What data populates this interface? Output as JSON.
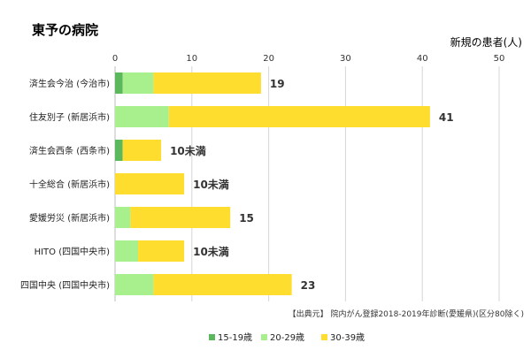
{
  "chart_data": {
    "type": "bar",
    "stacked": true,
    "orientation": "horizontal",
    "title": "東予の病院",
    "unit_label": "新規の患者(人)",
    "xlim": [
      0,
      50
    ],
    "x_ticks": [
      0,
      10,
      20,
      30,
      40,
      50
    ],
    "grid": true,
    "legend_position": "bottom",
    "categories": [
      "済生会今治 (今治市)",
      "住友別子 (新居浜市)",
      "済生会西条 (西条市)",
      "十全総合 (新居浜市)",
      "愛媛労災 (新居浜市)",
      "HITO (四国中央市)",
      "四国中央 (四国中央市)"
    ],
    "series": [
      {
        "name": "15-19歳",
        "color": "#5cb85c",
        "values": [
          1,
          0,
          1,
          0,
          0,
          0,
          0
        ]
      },
      {
        "name": "20-29歳",
        "color": "#a8ef8e",
        "values": [
          4,
          7,
          0,
          0,
          2,
          3,
          5
        ]
      },
      {
        "name": "30-39歳",
        "color": "#ffdd2e",
        "values": [
          14,
          34,
          5,
          9,
          13,
          6,
          18
        ]
      }
    ],
    "data_labels": [
      "19",
      "41",
      "10未満",
      "10未満",
      "15",
      "10未満",
      "23"
    ],
    "source": "【出典元】 院内がん登録2018-2019年診断(愛媛県)(区分80除く)"
  }
}
